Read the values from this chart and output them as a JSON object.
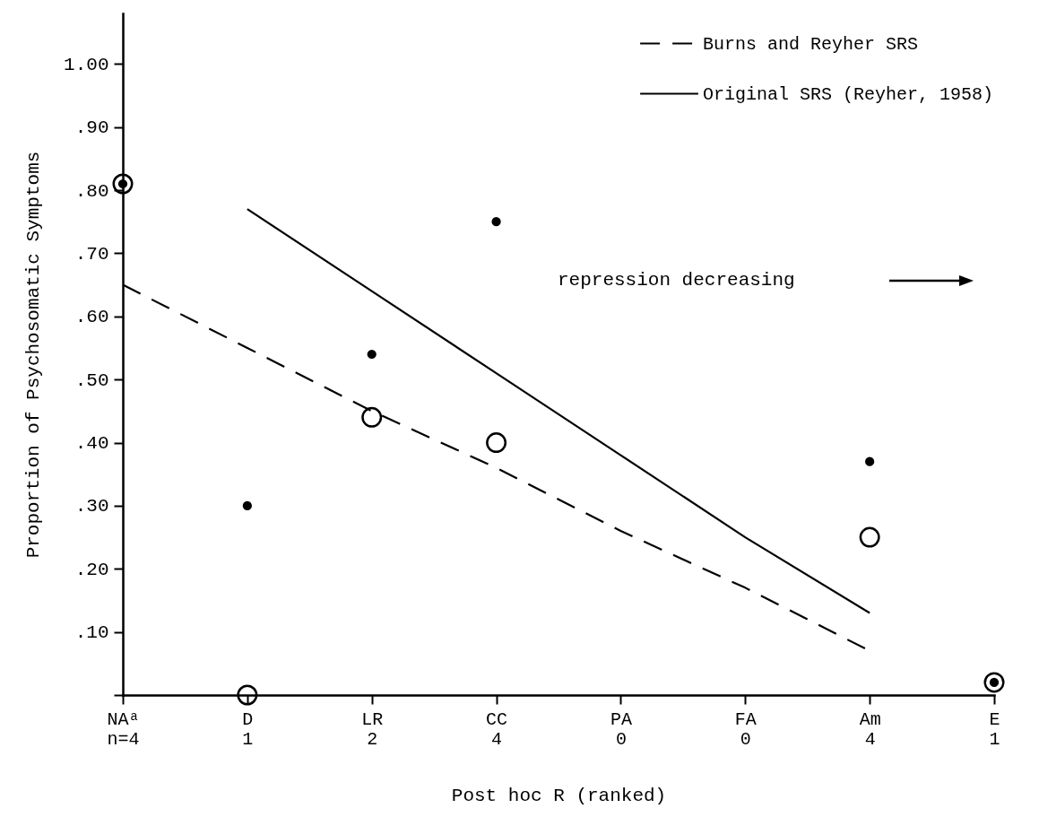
{
  "chart_data": {
    "type": "scatter",
    "xlabel": "Post hoc R (ranked)",
    "ylabel": "Proportion  of Psychosomatic Symptoms",
    "categories": [
      "NAᵃ\nn=4",
      "D\n1",
      "LR\n2",
      "CC\n4",
      "PA\n0",
      "FA\n0",
      "Am\n4",
      "E\n1"
    ],
    "ylim": [
      0,
      1.08
    ],
    "yticks": [
      {
        "value": 0,
        "label": null
      },
      {
        "value": 0.1,
        "label": ".10"
      },
      {
        "value": 0.2,
        "label": ".20"
      },
      {
        "value": 0.3,
        "label": ".30"
      },
      {
        "value": 0.4,
        "label": ".40"
      },
      {
        "value": 0.5,
        "label": ".50"
      },
      {
        "value": 0.6,
        "label": ".60"
      },
      {
        "value": 0.7,
        "label": ".70"
      },
      {
        "value": 0.8,
        "label": ".80"
      },
      {
        "value": 0.9,
        "label": ".90"
      },
      {
        "value": 1.0,
        "label": "1.00"
      }
    ],
    "series": [
      {
        "name": "Burns and Reyher SRS",
        "color": "#000000",
        "values": [
          0.81,
          0,
          0.44,
          0.4,
          null,
          null,
          0.25,
          0.02
        ]
      },
      {
        "type": "line",
        "line_style": "dashed",
        "color": "#000000",
        "values": [
          0.65,
          0.55,
          0.45,
          0.36,
          0.26,
          0.17,
          0.07,
          null
        ]
      },
      {
        "name": "Original SRS (Reyher, 1958)",
        "color": "#000000",
        "values": [
          0.81,
          0.3,
          0.54,
          0.75,
          null,
          null,
          0.37,
          0.02
        ]
      },
      {
        "type": "line",
        "line_style": "solid",
        "color": "#000000",
        "values": [
          null,
          0.77,
          0.64,
          0.51,
          0.38,
          0.25,
          0.13,
          null
        ]
      }
    ],
    "legend": "top right",
    "annotations": [
      "repression decreasing"
    ]
  }
}
